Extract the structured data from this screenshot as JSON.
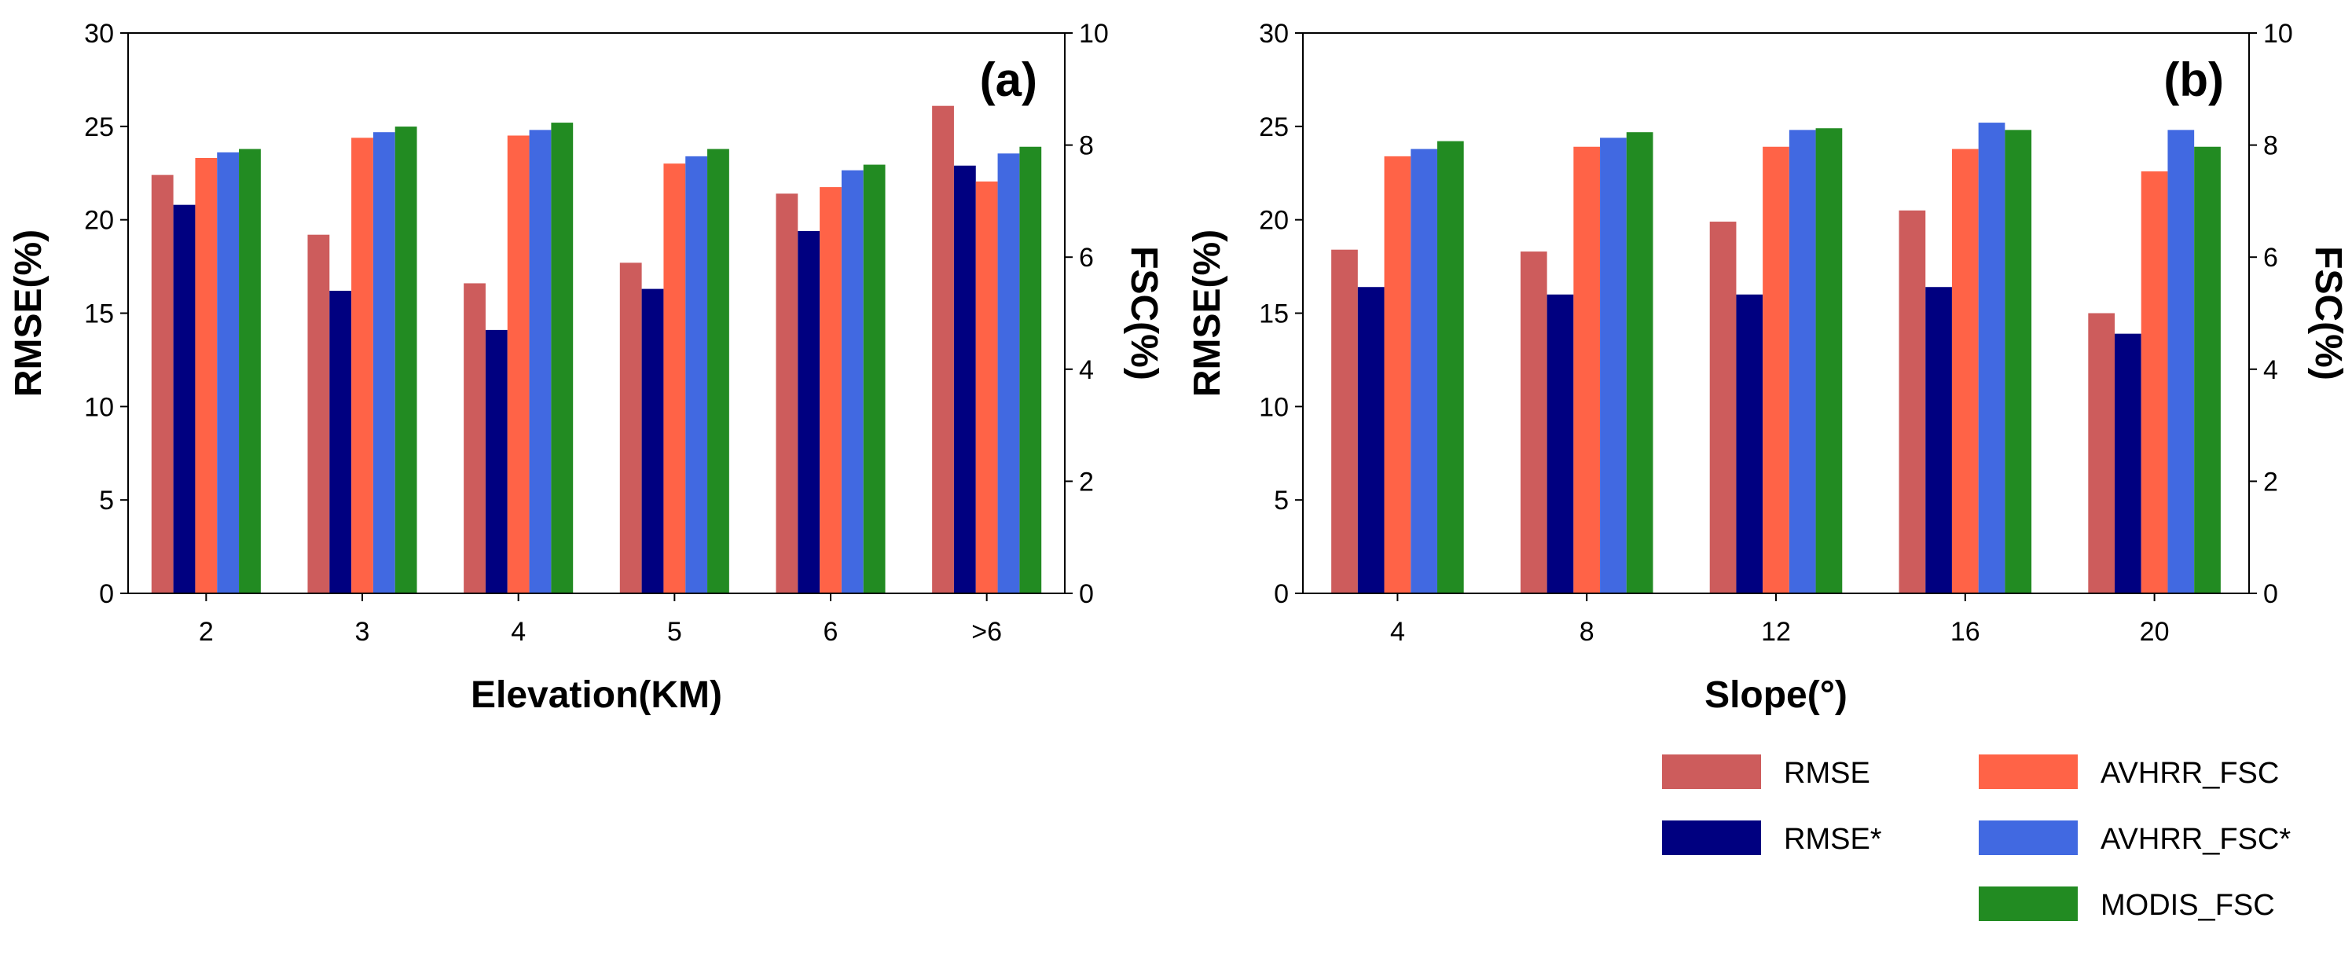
{
  "chart_data": [
    {
      "type": "bar",
      "panel_label": "(a)",
      "xlabel": "Elevation(KM)",
      "ylabel": "RMSE(%)",
      "ylabel_right": "FSC(%)",
      "ylim": [
        0,
        30
      ],
      "yticks": [
        "0",
        "5",
        "10",
        "15",
        "20",
        "25",
        "30"
      ],
      "ylim_right": [
        0,
        10
      ],
      "yticks_right": [
        "0",
        "2",
        "4",
        "6",
        "8",
        "10"
      ],
      "categories": [
        "2",
        "3",
        "4",
        "5",
        "6",
        ">6"
      ],
      "series": [
        {
          "name": "RMSE",
          "axis": "left",
          "values": [
            22.4,
            19.2,
            16.6,
            17.7,
            21.4,
            26.1
          ]
        },
        {
          "name": "RMSE*",
          "axis": "left",
          "values": [
            20.8,
            16.2,
            14.1,
            16.3,
            19.4,
            22.9
          ]
        },
        {
          "name": "AVHRR_FSC",
          "axis": "right",
          "values": [
            7.77,
            8.13,
            8.17,
            7.67,
            7.25,
            7.35
          ]
        },
        {
          "name": "AVHRR_FSC*",
          "axis": "right",
          "values": [
            7.87,
            8.23,
            8.27,
            7.8,
            7.55,
            7.85
          ]
        },
        {
          "name": "MODIS_FSC",
          "axis": "right",
          "values": [
            7.93,
            8.33,
            8.4,
            7.93,
            7.65,
            7.97
          ]
        }
      ]
    },
    {
      "type": "bar",
      "panel_label": "(b)",
      "xlabel": "Slope(°)",
      "ylabel": "RMSE(%)",
      "ylabel_right": "FSC(%)",
      "ylim": [
        0,
        30
      ],
      "yticks": [
        "0",
        "5",
        "10",
        "15",
        "20",
        "25",
        "30"
      ],
      "ylim_right": [
        0,
        10
      ],
      "yticks_right": [
        "0",
        "2",
        "4",
        "6",
        "8",
        "10"
      ],
      "categories": [
        "4",
        "8",
        "12",
        "16",
        "20"
      ],
      "series": [
        {
          "name": "RMSE",
          "axis": "left",
          "values": [
            18.4,
            18.3,
            19.9,
            20.5,
            15.0
          ]
        },
        {
          "name": "RMSE*",
          "axis": "left",
          "values": [
            16.4,
            16.0,
            16.0,
            16.4,
            13.9
          ]
        },
        {
          "name": "AVHRR_FSC",
          "axis": "right",
          "values": [
            7.8,
            7.97,
            7.97,
            7.93,
            7.53
          ]
        },
        {
          "name": "AVHRR_FSC*",
          "axis": "right",
          "values": [
            7.93,
            8.13,
            8.27,
            8.4,
            8.27
          ]
        },
        {
          "name": "MODIS_FSC",
          "axis": "right",
          "values": [
            8.07,
            8.23,
            8.3,
            8.27,
            7.97
          ]
        }
      ]
    }
  ],
  "legend": {
    "placement": "bottom-right",
    "entries": [
      {
        "label": "RMSE",
        "color": "#CD5C5C"
      },
      {
        "label": "RMSE*",
        "color": "#000080"
      },
      {
        "label": "AVHRR_FSC",
        "color": "#FF6347"
      },
      {
        "label": "AVHRR_FSC*",
        "color": "#4169E1"
      },
      {
        "label": "MODIS_FSC",
        "color": "#228B22"
      }
    ]
  }
}
